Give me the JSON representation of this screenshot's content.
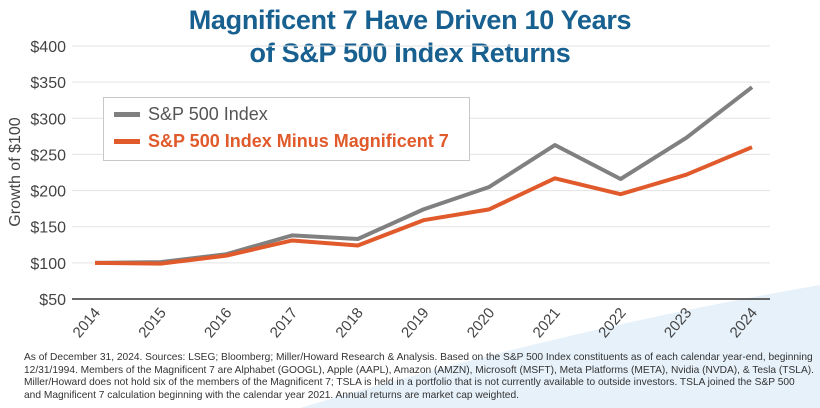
{
  "chart_data": {
    "type": "line",
    "title": "Magnificent 7 Have Driven 10 Years of S&P 500 Index Returns",
    "title_lines": [
      "Magnificent 7 Have Driven 10 Years",
      "of S&P 500 Index Returns"
    ],
    "ylabel": "Growth of $100",
    "xlabel": "",
    "x": [
      "2014",
      "2015",
      "2016",
      "2017",
      "2018",
      "2019",
      "2020",
      "2021",
      "2022",
      "2023",
      "2024"
    ],
    "ylim": [
      50,
      400
    ],
    "yticks": [
      50,
      100,
      150,
      200,
      250,
      300,
      350,
      400
    ],
    "ytick_labels": [
      "$50",
      "$100",
      "$150",
      "$200",
      "$250",
      "$300",
      "$350",
      "$400"
    ],
    "grid": true,
    "legend_placement": "top-left",
    "series": [
      {
        "name": "S&P 500 Index",
        "color": "#808080",
        "values": [
          100,
          101,
          112,
          138,
          133,
          174,
          205,
          263,
          216,
          273,
          343
        ]
      },
      {
        "name": "S&P 500 Index Minus Magnificent 7",
        "color": "#e05a2b",
        "values": [
          100,
          99,
          110,
          131,
          124,
          159,
          174,
          217,
          195,
          222,
          260
        ]
      }
    ]
  },
  "title_color": "#17608f",
  "footnote": "As of December 31, 2024. Sources: LSEG; Bloomberg; Miller/Howard Research & Analysis. Based on the S&P 500 Index constituents as of each calendar year-end, beginning 12/31/1994.  Members of the Magnificent 7 are Alphabet (GOOGL), Apple (AAPL), Amazon (AMZN), Microsoft (MSFT), Meta Platforms (META), Nvidia (NVDA), & Tesla (TSLA). Miller/Howard does not hold six of the members of the Magnificent 7; TSLA is held in a portfolio that is not currently available to outside investors. TSLA joined the S&P 500 and Magnificent 7 calculation beginning with the calendar year 2021. Annual returns are market cap weighted."
}
